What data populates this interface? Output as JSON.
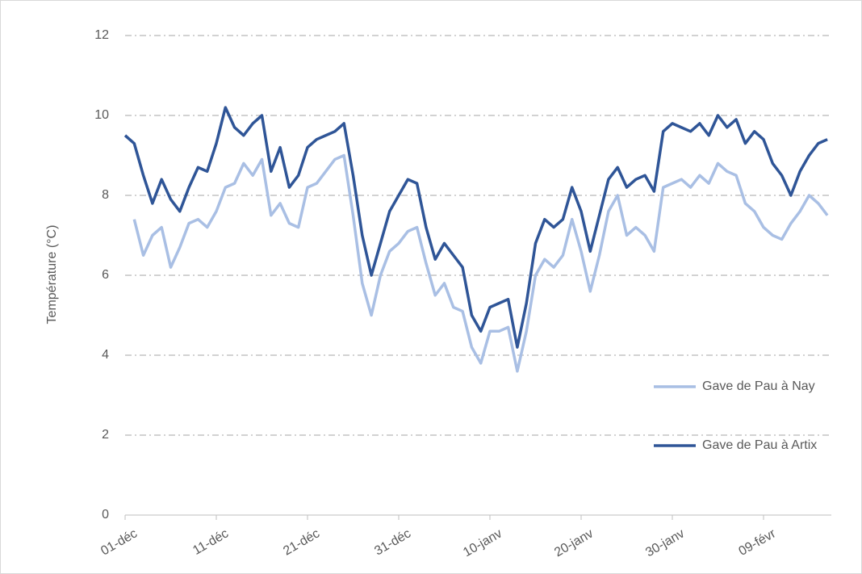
{
  "chart_data": {
    "type": "line",
    "ylabel": "Température (°C)",
    "categories": [
      "01-déc",
      null,
      null,
      null,
      null,
      null,
      null,
      null,
      null,
      null,
      "11-déc",
      null,
      null,
      null,
      null,
      null,
      null,
      null,
      null,
      null,
      "21-déc",
      null,
      null,
      null,
      null,
      null,
      null,
      null,
      null,
      null,
      "31-déc",
      null,
      null,
      null,
      null,
      null,
      null,
      null,
      null,
      null,
      "10-janv",
      null,
      null,
      null,
      null,
      null,
      null,
      null,
      null,
      null,
      "20-janv",
      null,
      null,
      null,
      null,
      null,
      null,
      null,
      null,
      null,
      "30-janv",
      null,
      null,
      null,
      null,
      null,
      null,
      null,
      null,
      null,
      "09-févr",
      null,
      null,
      null,
      null,
      null,
      null,
      null
    ],
    "series": [
      {
        "name": "Gave de Pau à Nay",
        "color": "#a9bfe4",
        "values": [
          null,
          7.4,
          6.5,
          7.0,
          7.2,
          6.2,
          6.7,
          7.3,
          7.4,
          7.2,
          7.6,
          8.2,
          8.3,
          8.8,
          8.5,
          8.9,
          7.5,
          7.8,
          7.3,
          7.2,
          8.2,
          8.3,
          8.6,
          8.9,
          9.0,
          7.5,
          5.8,
          5.0,
          6.0,
          6.6,
          6.8,
          7.1,
          7.2,
          6.3,
          5.5,
          5.8,
          5.2,
          5.1,
          4.2,
          3.8,
          4.6,
          4.6,
          4.7,
          3.6,
          4.6,
          6.0,
          6.4,
          6.2,
          6.5,
          7.4,
          6.6,
          5.6,
          6.5,
          7.6,
          8.0,
          7.0,
          7.2,
          7.0,
          6.6,
          8.2,
          8.3,
          8.4,
          8.2,
          8.5,
          8.3,
          8.8,
          8.6,
          8.5,
          7.8,
          7.6,
          7.2,
          7.0,
          6.9,
          7.3,
          7.6,
          8.0,
          7.8,
          7.5
        ]
      },
      {
        "name": "Gave de Pau à Artix",
        "color": "#2f5597",
        "values": [
          9.5,
          9.3,
          8.5,
          7.8,
          8.4,
          7.9,
          7.6,
          8.2,
          8.7,
          8.6,
          9.3,
          10.2,
          9.7,
          9.5,
          9.8,
          10.0,
          8.6,
          9.2,
          8.2,
          8.5,
          9.2,
          9.4,
          9.5,
          9.6,
          9.8,
          8.5,
          7.0,
          6.0,
          6.8,
          7.6,
          8.0,
          8.4,
          8.3,
          7.2,
          6.4,
          6.8,
          6.5,
          6.2,
          5.0,
          4.6,
          5.2,
          5.3,
          5.4,
          4.2,
          5.3,
          6.8,
          7.4,
          7.2,
          7.4,
          8.2,
          7.6,
          6.6,
          7.5,
          8.4,
          8.7,
          8.2,
          8.4,
          8.5,
          8.1,
          9.6,
          9.8,
          9.7,
          9.6,
          9.8,
          9.5,
          10.0,
          9.7,
          9.9,
          9.3,
          9.6,
          9.4,
          8.8,
          8.5,
          8.0,
          8.6,
          9.0,
          9.3,
          9.4
        ]
      }
    ],
    "ylim": [
      0,
      12
    ],
    "yticks": [
      0,
      2,
      4,
      6,
      8,
      10,
      12
    ],
    "grid": true,
    "legend": "right"
  }
}
